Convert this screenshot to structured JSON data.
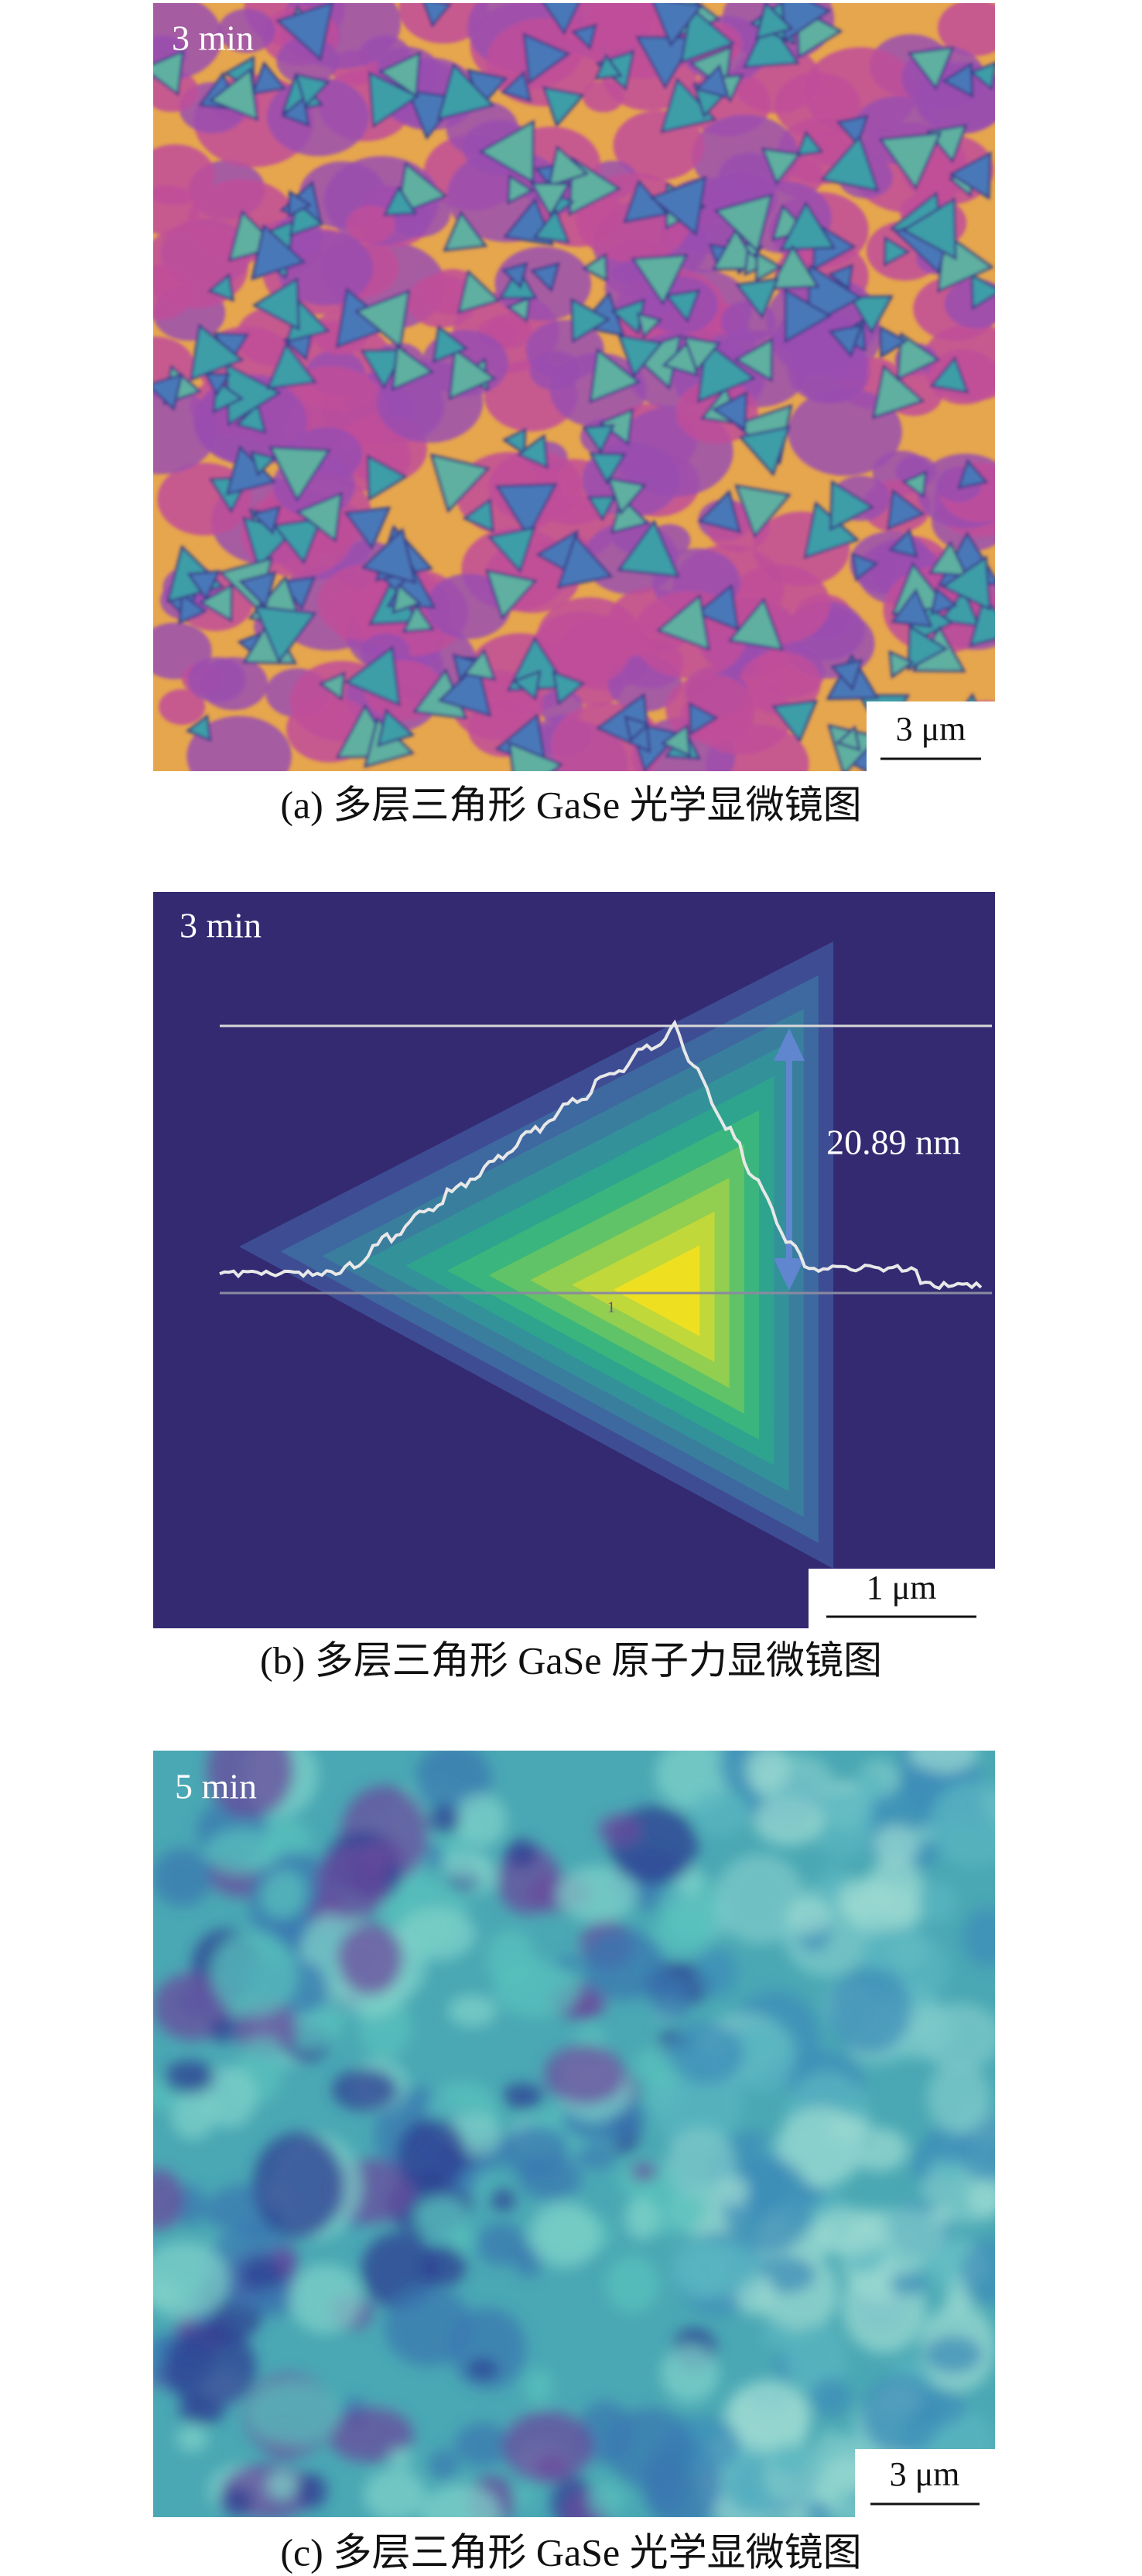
{
  "panels": [
    {
      "time_label": "3 min",
      "scale_bar": "3 μm",
      "caption": "(a) 多层三角形 GaSe 光学显微镜图"
    },
    {
      "time_label": "3 min",
      "height_label": "20.89 nm",
      "profile_marker": "1",
      "scale_bar": "1 μm",
      "caption": "(b) 多层三角形 GaSe 原子力显微镜图"
    },
    {
      "time_label": "5 min",
      "scale_bar": "3 μm",
      "caption": "(c) 多层三角形 GaSe 光学显微镜图"
    }
  ]
}
